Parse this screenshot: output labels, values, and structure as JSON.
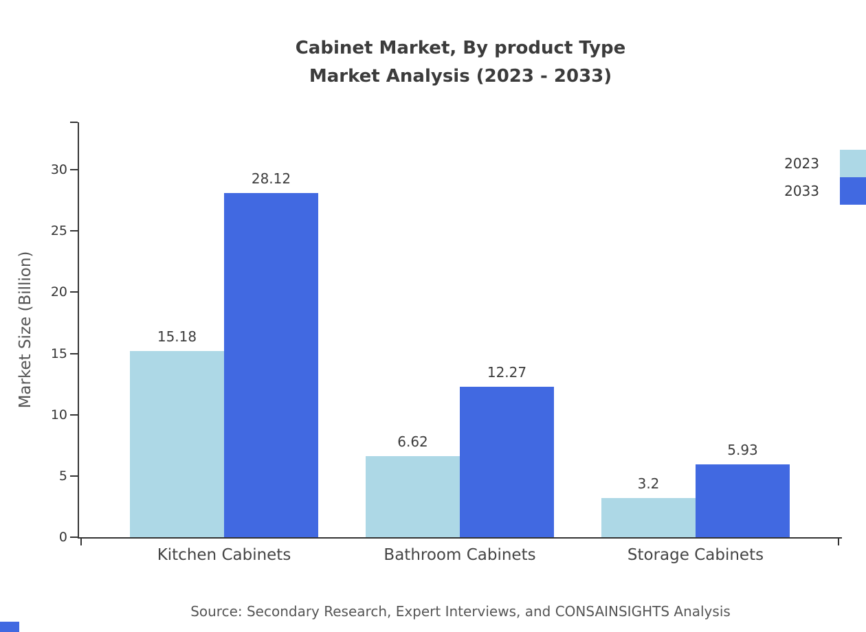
{
  "chart": {
    "title_line1": "Cabinet Market, By product Type",
    "title_line2": "Market Analysis (2023 - 2033)",
    "ylabel": "Market Size (Billion)",
    "source": "Source: Secondary Research, Expert Interviews, and CONSAINSIGHTS Analysis"
  },
  "chart_data": {
    "type": "bar",
    "title": "Cabinet Market, By product Type Market Analysis (2023 - 2033)",
    "categories": [
      "Kitchen Cabinets",
      "Bathroom Cabinets",
      "Storage Cabinets"
    ],
    "series": [
      {
        "name": "2023",
        "color": "#ADD8E6",
        "values": [
          15.18,
          6.62,
          3.2
        ]
      },
      {
        "name": "2033",
        "color": "#4169E1",
        "values": [
          28.12,
          12.27,
          5.93
        ]
      }
    ],
    "xlabel": "",
    "ylabel": "Market Size (Billion)",
    "ylim": [
      0,
      34
    ],
    "yticks": [
      0,
      5,
      10,
      15,
      20,
      25,
      30
    ],
    "legend_position": "top-right",
    "grid": false,
    "value_labels": true
  }
}
